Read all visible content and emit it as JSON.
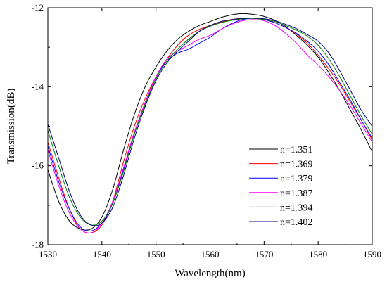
{
  "chart_data": {
    "type": "line",
    "title": "",
    "xlabel": "Wavelength(nm)",
    "ylabel": "Transmission(dB)",
    "xlim": [
      1530,
      1590
    ],
    "ylim": [
      -18,
      -12
    ],
    "xticks": [
      1530,
      1540,
      1550,
      1560,
      1570,
      1580,
      1590
    ],
    "yticks": [
      -18,
      -16,
      -14,
      -12
    ],
    "grid": false,
    "legend_position": "bottom-right",
    "series": [
      {
        "name": "n=1.351",
        "color": "#000000",
        "x": [
          1530,
          1532,
          1534,
          1536,
          1538,
          1540,
          1542,
          1544,
          1546,
          1548,
          1550,
          1552,
          1554,
          1556,
          1558,
          1560,
          1562,
          1564,
          1566,
          1568,
          1570,
          1572,
          1574,
          1576,
          1578,
          1580,
          1582,
          1584,
          1586,
          1588,
          1590
        ],
        "y": [
          -16.1,
          -16.9,
          -17.4,
          -17.6,
          -17.6,
          -17.3,
          -16.6,
          -15.6,
          -14.7,
          -14.0,
          -13.5,
          -13.1,
          -12.8,
          -12.6,
          -12.45,
          -12.35,
          -12.25,
          -12.18,
          -12.15,
          -12.17,
          -12.22,
          -12.32,
          -12.48,
          -12.7,
          -12.95,
          -13.25,
          -13.65,
          -14.1,
          -14.6,
          -15.1,
          -15.65
        ]
      },
      {
        "name": "n=1.369",
        "color": "#ff0000",
        "x": [
          1530,
          1532,
          1534,
          1536,
          1538,
          1540,
          1542,
          1544,
          1546,
          1548,
          1550,
          1552,
          1554,
          1556,
          1558,
          1560,
          1562,
          1564,
          1566,
          1568,
          1570,
          1572,
          1574,
          1576,
          1578,
          1580,
          1582,
          1584,
          1586,
          1588,
          1590
        ],
        "y": [
          -15.4,
          -16.3,
          -17.1,
          -17.6,
          -17.7,
          -17.5,
          -16.9,
          -15.9,
          -15.0,
          -14.3,
          -13.75,
          -13.3,
          -12.95,
          -12.7,
          -12.55,
          -12.45,
          -12.37,
          -12.3,
          -12.27,
          -12.27,
          -12.3,
          -12.38,
          -12.5,
          -12.67,
          -12.9,
          -13.2,
          -13.55,
          -13.95,
          -14.4,
          -14.85,
          -15.35
        ]
      },
      {
        "name": "n=1.379",
        "color": "#0000ff",
        "x": [
          1530,
          1532,
          1534,
          1536,
          1538,
          1540,
          1542,
          1544,
          1546,
          1548,
          1550,
          1552,
          1554,
          1556,
          1558,
          1560,
          1562,
          1564,
          1566,
          1568,
          1570,
          1572,
          1574,
          1576,
          1578,
          1580,
          1582,
          1584,
          1586,
          1588,
          1590
        ],
        "y": [
          -15.5,
          -16.4,
          -17.1,
          -17.55,
          -17.65,
          -17.45,
          -16.95,
          -16.1,
          -15.2,
          -14.4,
          -13.75,
          -13.35,
          -13.15,
          -13.05,
          -12.9,
          -12.75,
          -12.55,
          -12.4,
          -12.3,
          -12.27,
          -12.3,
          -12.38,
          -12.5,
          -12.65,
          -12.85,
          -13.1,
          -13.45,
          -13.9,
          -14.35,
          -14.85,
          -15.3
        ]
      },
      {
        "name": "n=1.387",
        "color": "#ff00ff",
        "x": [
          1530,
          1532,
          1534,
          1536,
          1538,
          1540,
          1542,
          1544,
          1546,
          1548,
          1550,
          1552,
          1554,
          1556,
          1558,
          1560,
          1562,
          1564,
          1566,
          1568,
          1570,
          1572,
          1574,
          1576,
          1578,
          1580,
          1582,
          1584,
          1586,
          1588,
          1590
        ],
        "y": [
          -15.6,
          -16.5,
          -17.2,
          -17.6,
          -17.7,
          -17.45,
          -16.9,
          -16.05,
          -15.15,
          -14.4,
          -13.75,
          -13.3,
          -13.1,
          -12.95,
          -12.8,
          -12.7,
          -12.55,
          -12.42,
          -12.33,
          -12.3,
          -12.33,
          -12.45,
          -12.65,
          -12.9,
          -13.2,
          -13.45,
          -13.75,
          -14.1,
          -14.5,
          -14.95,
          -15.4
        ]
      },
      {
        "name": "n=1.394",
        "color": "#008000",
        "x": [
          1530,
          1532,
          1534,
          1536,
          1538,
          1540,
          1542,
          1544,
          1546,
          1548,
          1550,
          1552,
          1554,
          1556,
          1558,
          1560,
          1562,
          1564,
          1566,
          1568,
          1570,
          1572,
          1574,
          1576,
          1578,
          1580,
          1582,
          1584,
          1586,
          1588,
          1590
        ],
        "y": [
          -15.1,
          -16.0,
          -16.8,
          -17.3,
          -17.5,
          -17.4,
          -16.95,
          -16.15,
          -15.2,
          -14.45,
          -13.8,
          -13.35,
          -13.05,
          -12.8,
          -12.6,
          -12.47,
          -12.38,
          -12.32,
          -12.28,
          -12.27,
          -12.3,
          -12.35,
          -12.45,
          -12.57,
          -12.72,
          -12.95,
          -13.3,
          -13.75,
          -14.25,
          -14.75,
          -15.2
        ]
      },
      {
        "name": "n=1.402",
        "color": "#000080",
        "x": [
          1530,
          1532,
          1534,
          1536,
          1538,
          1540,
          1542,
          1544,
          1546,
          1548,
          1550,
          1552,
          1554,
          1556,
          1558,
          1560,
          1562,
          1564,
          1566,
          1568,
          1570,
          1572,
          1574,
          1576,
          1578,
          1580,
          1582,
          1584,
          1586,
          1588,
          1590
        ],
        "y": [
          -14.95,
          -15.8,
          -16.65,
          -17.25,
          -17.5,
          -17.45,
          -17.05,
          -16.25,
          -15.3,
          -14.5,
          -13.85,
          -13.4,
          -13.1,
          -12.85,
          -12.6,
          -12.45,
          -12.35,
          -12.3,
          -12.27,
          -12.26,
          -12.28,
          -12.33,
          -12.42,
          -12.53,
          -12.68,
          -12.85,
          -13.15,
          -13.6,
          -14.1,
          -14.6,
          -15.0
        ]
      }
    ]
  }
}
